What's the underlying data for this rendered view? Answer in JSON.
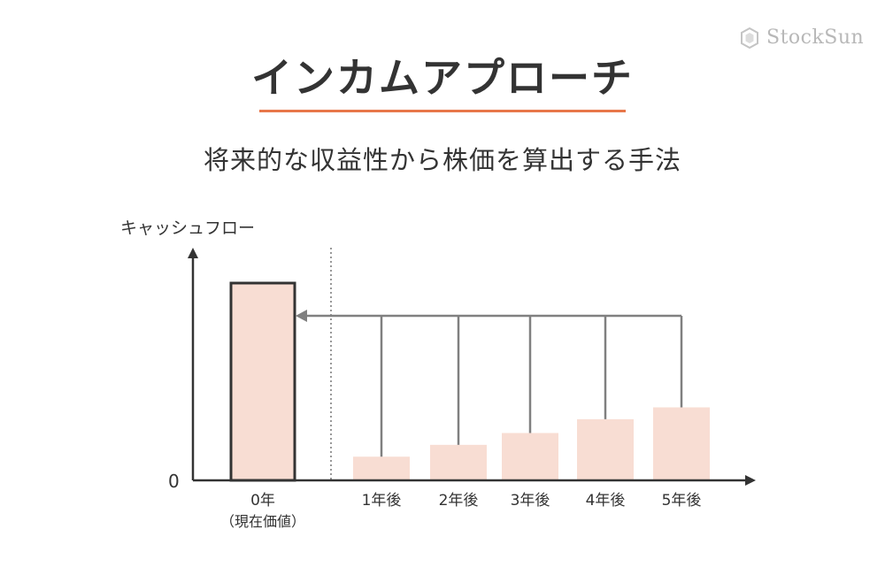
{
  "brand": {
    "name": "StockSun",
    "icon": "hexagon-logo-icon"
  },
  "header": {
    "title": "インカムアプローチ",
    "subtitle": "将来的な収益性から株価を算出する手法"
  },
  "colors": {
    "accent": "#e8774a",
    "bar_fill": "#f8ddd3",
    "bar_outline": "#333333",
    "arrow": "#808080",
    "axis": "#333333"
  },
  "chart_data": {
    "type": "bar",
    "categories": [
      "0年",
      "1年後",
      "2年後",
      "3年後",
      "4年後",
      "5年後"
    ],
    "category_sublabels": [
      "（現在価値）",
      "",
      "",
      "",
      "",
      ""
    ],
    "values": [
      100,
      12,
      18,
      24,
      31,
      37
    ],
    "highlighted_index": 0,
    "ylabel": "キャッシュフロー",
    "y_tick_labels": [
      "0"
    ],
    "ylim": [
      0,
      100
    ],
    "annotation": "arrows from future cash flows (1年後–5年後) back to present value (0年)",
    "grid": false
  }
}
